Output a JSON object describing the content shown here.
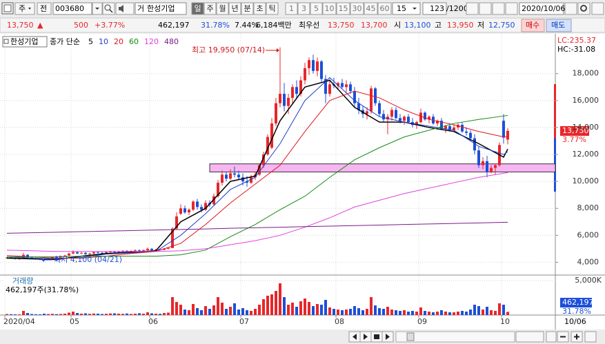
{
  "toolbar": {
    "type_select": "주",
    "prev": "전",
    "code": "003680",
    "badge": "거",
    "name": "한성기업",
    "periods": [
      "일",
      "주",
      "월",
      "년",
      "분",
      "초",
      "틱"
    ],
    "intervals": [
      "1",
      "3",
      "5",
      "10",
      "15",
      "30",
      "45",
      "60"
    ],
    "interval_value": "15",
    "count": "123",
    "count_total": "/1200",
    "date": "2020/10/06"
  },
  "quote": {
    "price": "13,750",
    "arrow": "▲",
    "change": "500",
    "change_rate": "+3.77%",
    "volume": "462,197",
    "volume_rate": "31.78%",
    "turnover": "7.44%",
    "amount": "6,184백만",
    "best_label": "최우선",
    "ask": "13,750",
    "bid": "13,700",
    "open_label": "시",
    "open": "13,100",
    "high_label": "고",
    "high": "13,950",
    "low_label": "저",
    "low": "12,750",
    "buy": "매수",
    "sell": "매도"
  },
  "chart_data": {
    "type": "candlestick",
    "title": "한성기업",
    "ma_label": "종가 단순",
    "indicators": [
      "LC:235.37",
      "HC:-31.08"
    ],
    "annotations": [
      "최고 19,950 (07/14)",
      "최저 4,100 (04/21)"
    ],
    "last_price_label": "13,750",
    "change_label": "3.77%",
    "x_last_label": "10/06",
    "up_color": "#e8262a",
    "down_color": "#1d4fd8",
    "grid": true,
    "ylim": [
      3100,
      20800
    ],
    "yticks": [
      {
        "value": 4000,
        "label": "4,000"
      },
      {
        "value": 6000,
        "label": "6,000"
      },
      {
        "value": 8000,
        "label": "8,000"
      },
      {
        "value": 10000,
        "label": "10,000"
      },
      {
        "value": 12000,
        "label": "12,000"
      },
      {
        "value": 14000,
        "label": "14,000"
      },
      {
        "value": 16000,
        "label": "16,000"
      },
      {
        "value": 18000,
        "label": "18,000"
      }
    ],
    "xticks": [
      {
        "value": 0,
        "label": "2020/04"
      },
      {
        "value": 16,
        "label": "05"
      },
      {
        "value": 35,
        "label": "06"
      },
      {
        "value": 57,
        "label": "07"
      },
      {
        "value": 80,
        "label": "08"
      },
      {
        "value": 100,
        "label": "09"
      },
      {
        "value": 120,
        "label": "10"
      }
    ],
    "open": [
      4300,
      4350,
      4300,
      4250,
      4280,
      4550,
      4350,
      4300,
      4250,
      4200,
      4180,
      4280,
      4380,
      4350,
      4450,
      4500,
      4650,
      4750,
      4650,
      4700,
      4600,
      4650,
      4750,
      4700,
      4680,
      4750,
      4800,
      4750,
      4800,
      4850,
      4800,
      4850,
      4900,
      4850,
      4900,
      5000,
      4900,
      4950,
      4920,
      5000,
      5050,
      6500,
      7600,
      8000,
      7700,
      7900,
      8500,
      8100,
      7900,
      8400,
      8300,
      8900,
      9900,
      10500,
      10200,
      10600,
      10500,
      10300,
      10000,
      9900,
      10300,
      10500,
      11200,
      12000,
      12500,
      14300,
      15800,
      16500,
      15600,
      16200,
      17000,
      16500,
      17500,
      18400,
      19000,
      18200,
      18900,
      17600,
      16500,
      17200,
      17100,
      17300,
      17000,
      17200,
      16700,
      15800,
      15300,
      15000,
      15200,
      16900,
      15800,
      15000,
      14600,
      14800,
      15300,
      14700,
      14500,
      14800,
      14400,
      14200,
      14400,
      15100,
      14600,
      14800,
      14300,
      14500,
      13900,
      14100,
      13800,
      14000,
      14200,
      13700,
      13600,
      13200,
      12300,
      11200,
      11500,
      10700,
      11000,
      11200,
      14500,
      13100
    ],
    "high": [
      4380,
      4400,
      4350,
      4300,
      4700,
      4600,
      4400,
      4350,
      4300,
      4250,
      4300,
      4400,
      4450,
      4500,
      4550,
      4700,
      4900,
      4800,
      4750,
      4750,
      4700,
      4800,
      4800,
      4750,
      4800,
      4850,
      4850,
      4850,
      4900,
      4900,
      4880,
      4950,
      4950,
      4950,
      5100,
      5050,
      5000,
      5000,
      5050,
      5100,
      6600,
      7700,
      8300,
      8200,
      8000,
      8600,
      8700,
      8300,
      8600,
      8600,
      9100,
      10100,
      10800,
      10700,
      10900,
      11100,
      10800,
      10600,
      10400,
      10500,
      10700,
      11300,
      12200,
      13500,
      14700,
      16200,
      19950,
      17300,
      16500,
      17200,
      17500,
      17800,
      18800,
      19200,
      19400,
      19200,
      19000,
      17900,
      17600,
      17700,
      17400,
      17600,
      17500,
      17400,
      17000,
      16200,
      15600,
      15500,
      17100,
      17000,
      16000,
      15300,
      15000,
      15500,
      15500,
      15000,
      14900,
      15000,
      14700,
      14500,
      15400,
      15200,
      14900,
      15000,
      14600,
      14700,
      14200,
      14300,
      14200,
      14300,
      14400,
      14000,
      13800,
      13500,
      12600,
      11800,
      11900,
      11200,
      11300,
      12900,
      15000,
      13950
    ],
    "low": [
      4250,
      4280,
      4200,
      4180,
      4250,
      4300,
      4250,
      4200,
      4150,
      4100,
      4150,
      4250,
      4300,
      4320,
      4400,
      4450,
      4600,
      4600,
      4600,
      4550,
      4550,
      4600,
      4650,
      4620,
      4650,
      4700,
      4700,
      4720,
      4750,
      4750,
      4760,
      4800,
      4800,
      4820,
      4850,
      4850,
      4850,
      4880,
      4900,
      4950,
      5050,
      6400,
      7500,
      7600,
      7500,
      7800,
      7900,
      7700,
      7800,
      8100,
      8200,
      8800,
      9700,
      10000,
      10100,
      10300,
      10100,
      9700,
      9600,
      9800,
      10100,
      10400,
      11000,
      11900,
      12400,
      14100,
      15500,
      15200,
      15000,
      15800,
      16200,
      16300,
      17200,
      17900,
      18000,
      17800,
      17400,
      15800,
      16300,
      16900,
      16800,
      16900,
      16600,
      16500,
      15500,
      15000,
      14700,
      14600,
      15000,
      15600,
      14800,
      14400,
      13500,
      14500,
      14600,
      14300,
      14200,
      14300,
      14000,
      13900,
      14300,
      14500,
      14300,
      14200,
      14100,
      13800,
      13600,
      13700,
      13700,
      13800,
      13600,
      13400,
      13000,
      12000,
      11000,
      10900,
      10300,
      10600,
      10500,
      11100,
      12800,
      12750
    ],
    "close": [
      4350,
      4300,
      4250,
      4280,
      4550,
      4350,
      4300,
      4250,
      4200,
      4180,
      4280,
      4380,
      4350,
      4450,
      4500,
      4650,
      4750,
      4650,
      4700,
      4600,
      4650,
      4750,
      4700,
      4680,
      4750,
      4800,
      4750,
      4800,
      4850,
      4800,
      4850,
      4900,
      4850,
      4900,
      5000,
      4900,
      4950,
      4920,
      5000,
      5050,
      6500,
      7400,
      8000,
      7700,
      7900,
      8500,
      8100,
      7900,
      8400,
      8300,
      8900,
      9900,
      10500,
      10200,
      10600,
      10500,
      10300,
      10000,
      9900,
      10300,
      10500,
      11200,
      12000,
      13300,
      14300,
      15800,
      16500,
      15600,
      16200,
      17000,
      16500,
      17500,
      18400,
      19000,
      18200,
      18900,
      17600,
      16500,
      17200,
      17100,
      17300,
      17000,
      17200,
      16700,
      15800,
      15300,
      15000,
      15200,
      16900,
      15800,
      15000,
      14600,
      14800,
      15300,
      14700,
      14500,
      14800,
      14400,
      14200,
      14400,
      15100,
      14600,
      14800,
      14300,
      14500,
      13900,
      14100,
      13800,
      14000,
      14200,
      13700,
      13600,
      13200,
      12300,
      11200,
      11500,
      10700,
      11000,
      11200,
      12700,
      13250,
      13750
    ],
    "band": {
      "start": 49,
      "low": 10700,
      "high": 11300,
      "color": "#f7b6f2"
    },
    "ma": {
      "x": [
        0,
        6,
        12,
        18,
        24,
        30,
        36,
        42,
        48,
        54,
        60,
        66,
        72,
        78,
        84,
        90,
        96,
        102,
        108,
        114,
        120,
        121
      ],
      "series": [
        {
          "name": "5",
          "color": "#000000",
          "values": [
            4300,
            4250,
            4200,
            4450,
            4650,
            4750,
            4850,
            7000,
            8000,
            10000,
            10400,
            14500,
            17000,
            17500,
            15500,
            14400,
            14400,
            14000,
            13700,
            12800,
            11800,
            12400
          ]
        },
        {
          "name": "10",
          "color": "#1f3fd0",
          "values": [
            4400,
            4300,
            4250,
            4350,
            4600,
            4700,
            4800,
            6000,
            7600,
            9400,
            10300,
            12800,
            16000,
            17700,
            16000,
            14800,
            14400,
            14100,
            13800,
            12600,
            12000,
            12200
          ]
        },
        {
          "name": "20",
          "color": "#e0141e",
          "values": [
            4500,
            4400,
            4300,
            4300,
            4450,
            4650,
            4800,
            5400,
            6800,
            8400,
            9800,
            11200,
            13700,
            16000,
            16700,
            16200,
            15300,
            14600,
            14200,
            13700,
            13300,
            13300
          ]
        },
        {
          "name": "60",
          "color": "#138a13",
          "values": [
            4400,
            4400,
            4400,
            4450,
            4450,
            4450,
            4450,
            4550,
            4900,
            5900,
            6800,
            7900,
            8900,
            10300,
            11600,
            12500,
            13300,
            13800,
            14300,
            14600,
            14850,
            14900
          ]
        },
        {
          "name": "120",
          "color": "#e040e0",
          "values": [
            4900,
            4850,
            4800,
            4800,
            4800,
            4800,
            4800,
            4850,
            5000,
            5300,
            5600,
            6000,
            6600,
            7300,
            8100,
            8600,
            9100,
            9500,
            9900,
            10300,
            10600,
            10650
          ]
        },
        {
          "name": "480",
          "color": "#7a1a8a",
          "values": [
            6150,
            6190,
            6230,
            6270,
            6310,
            6350,
            6390,
            6430,
            6470,
            6520,
            6560,
            6600,
            6640,
            6680,
            6720,
            6760,
            6800,
            6840,
            6880,
            6920,
            6960,
            6970
          ]
        }
      ]
    },
    "volume": {
      "title": "거래량",
      "label": "462,197주(31.78%)",
      "last_label": "462,197",
      "ratio_label": "31.78%",
      "ylim": [
        0,
        5500000
      ],
      "yticks": [
        {
          "value": 5000000,
          "label": "5,000K"
        }
      ],
      "values": [
        150000,
        120000,
        100000,
        90000,
        600000,
        300000,
        150000,
        120000,
        100000,
        200000,
        150000,
        180000,
        130000,
        160000,
        200000,
        350000,
        500000,
        300000,
        200000,
        250000,
        180000,
        220000,
        200000,
        150000,
        190000,
        230000,
        250000,
        200000,
        180000,
        220000,
        160000,
        200000,
        260000,
        200000,
        400000,
        250000,
        200000,
        180000,
        300000,
        350000,
        2600000,
        1900000,
        1500000,
        800000,
        700000,
        1600000,
        1000000,
        700000,
        1300000,
        900000,
        1400000,
        2600000,
        1800000,
        900000,
        1200000,
        1700000,
        800000,
        1000000,
        700000,
        600000,
        900000,
        1500000,
        2300000,
        2800000,
        3000000,
        3500000,
        4600000,
        2600000,
        1500000,
        1800000,
        1200000,
        2000000,
        2400000,
        1900000,
        1300000,
        1600000,
        1500000,
        2200000,
        1100000,
        900000,
        800000,
        700000,
        800000,
        900000,
        1300000,
        1000000,
        700000,
        900000,
        2600000,
        1400000,
        1000000,
        900000,
        1200000,
        800000,
        700000,
        600000,
        700000,
        500000,
        600000,
        500000,
        1100000,
        600000,
        500000,
        400000,
        500000,
        700000,
        500000,
        400000,
        400000,
        500000,
        600000,
        500000,
        800000,
        1500000,
        1300000,
        800000,
        1200000,
        700000,
        600000,
        1700000,
        1500000,
        462197
      ]
    }
  }
}
